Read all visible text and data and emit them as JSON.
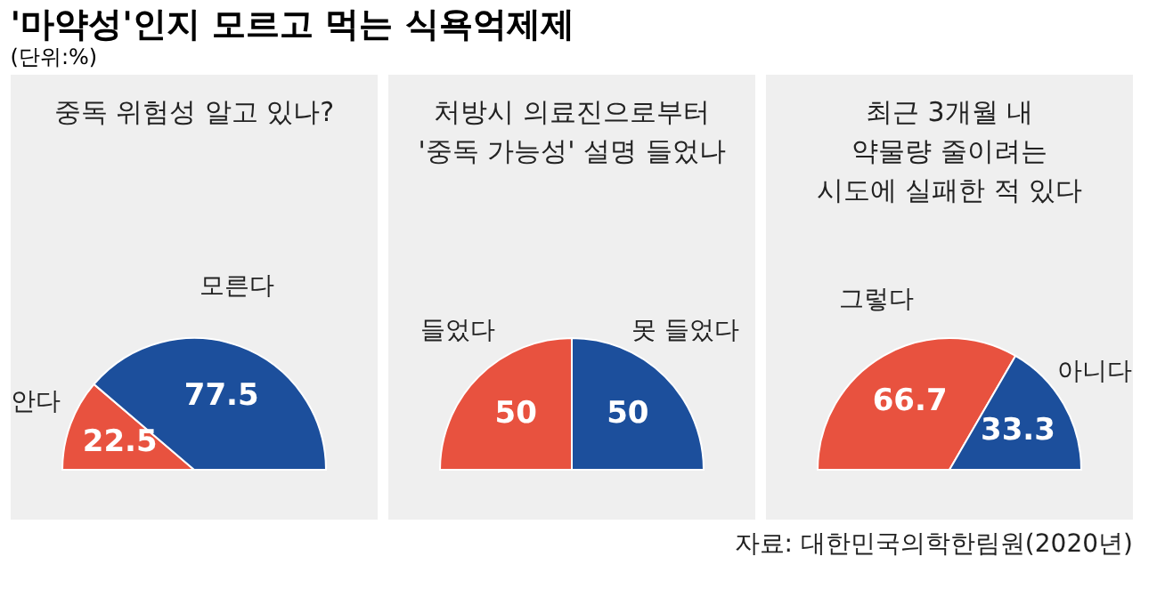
{
  "chart_data": [
    {
      "type": "pie",
      "title": "중독 위험성 알고 있나?",
      "categories": [
        "안다",
        "모른다"
      ],
      "values": [
        22.5,
        77.5
      ],
      "colors": [
        "#e8523f",
        "#1c4f9c"
      ],
      "data_labels": true,
      "annotations": [
        "'마약성'인지 모르고 먹는 식욕억제제",
        "(단위:%)"
      ]
    },
    {
      "type": "pie",
      "title": "처방시 의료진으로부터\n'중독 가능성' 설명 들었나",
      "categories": [
        "들었다",
        "못 들었다"
      ],
      "values": [
        50,
        50
      ],
      "colors": [
        "#e8523f",
        "#1c4f9c"
      ],
      "data_labels": true
    },
    {
      "type": "pie",
      "title": "최근 3개월 내\n약물량 줄이려는\n시도에 실패한 적 있다",
      "categories": [
        "그렇다",
        "아니다"
      ],
      "values": [
        66.7,
        33.3
      ],
      "colors": [
        "#e8523f",
        "#1c4f9c"
      ],
      "data_labels": true,
      "annotations": [
        "자료: 대한민국의학한림원(2020년)"
      ]
    }
  ]
}
